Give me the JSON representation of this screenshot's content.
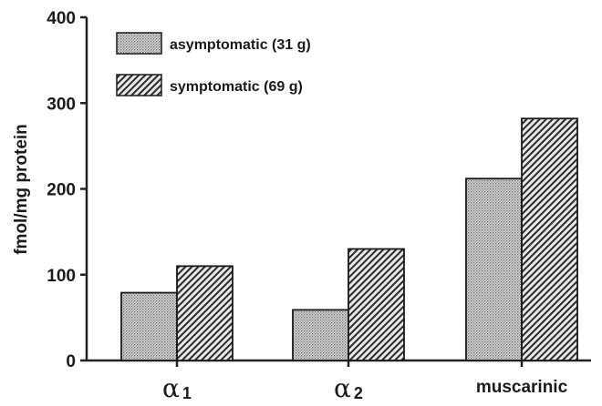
{
  "chart_data": {
    "type": "bar",
    "categories": [
      {
        "text": "muscarinic",
        "greek": "",
        "sub": ""
      },
      {
        "text": "",
        "greek": "α",
        "sub": "1"
      },
      {
        "text": "",
        "greek": "α",
        "sub": "2"
      }
    ],
    "category_order": [
      1,
      2,
      0
    ],
    "series": [
      {
        "name": "asymptomatic (31 g)",
        "values": [
          212,
          79,
          59
        ],
        "pattern": "dots"
      },
      {
        "name": "symptomatic (69 g)",
        "values": [
          282,
          110,
          130
        ],
        "pattern": "hatch"
      }
    ],
    "ylabel": "fmol/mg protein",
    "ylim": [
      0,
      400
    ],
    "yticks": [
      0,
      100,
      200,
      300,
      400
    ],
    "legend_position": "top-left",
    "grid": false
  }
}
